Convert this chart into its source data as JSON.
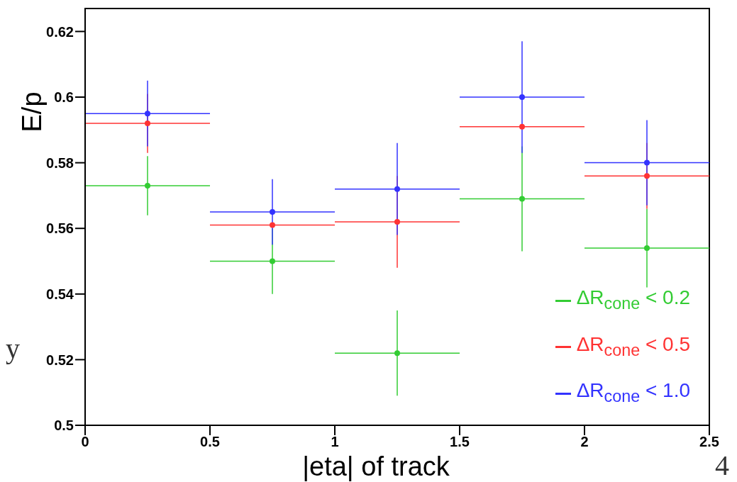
{
  "chart_data": {
    "type": "scatter",
    "xlabel": "|eta| of track",
    "ylabel": "E/p",
    "x": [
      0.25,
      0.75,
      1.25,
      1.75,
      2.25
    ],
    "series": [
      {
        "name": "ΔR$_{cone}$ < 0.2",
        "color": "#33cc33",
        "values": [
          0.573,
          0.55,
          0.522,
          0.569,
          0.554
        ],
        "errors": [
          0.009,
          0.01,
          0.013,
          0.016,
          0.012
        ],
        "xerrors": [
          0.25,
          0.25,
          0.25,
          0.25,
          0.25
        ]
      },
      {
        "name": "ΔR$_{cone}$ < 0.5",
        "color": "#ff3333",
        "values": [
          0.592,
          0.561,
          0.562,
          0.591,
          0.576
        ],
        "errors": [
          0.009,
          null,
          0.014,
          null,
          0.01
        ],
        "xerrors": [
          0.25,
          0.25,
          0.25,
          0.25,
          0.25
        ]
      },
      {
        "name": "ΔR$_{cone}$ < 1.0",
        "color": "#3333ff",
        "values": [
          0.595,
          0.565,
          0.572,
          0.6,
          0.58
        ],
        "errors": [
          0.01,
          0.01,
          0.014,
          0.017,
          0.013
        ],
        "xerrors": [
          0.25,
          0.25,
          0.25,
          0.25,
          0.25
        ]
      }
    ],
    "xlim": [
      0,
      2.5
    ],
    "xticks": [
      0,
      0.5,
      1,
      1.5,
      2,
      2.5
    ],
    "ylim": [
      0.5,
      0.627
    ],
    "yticks": [
      0.5,
      0.52,
      0.54,
      0.56,
      0.58,
      0.6,
      0.62
    ],
    "grid": false,
    "legend": "bottom right",
    "marker": "circle",
    "annotations": [
      "y",
      "4"
    ]
  }
}
